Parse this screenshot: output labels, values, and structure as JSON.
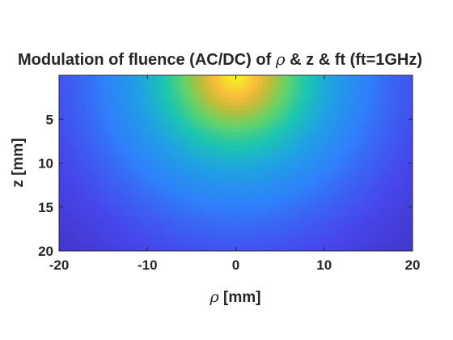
{
  "chart_data": {
    "type": "heatmap",
    "title_prefix": "Modulation of fluence (AC/DC) of ",
    "title_symbol": "ρ",
    "title_suffix": " & z & ft (ft=1GHz)",
    "xlabel_symbol": "ρ",
    "xlabel_unit": " [mm]",
    "ylabel": "z [mm]",
    "xlim": [
      -20,
      20
    ],
    "ylim": [
      0,
      20
    ],
    "y_reversed": true,
    "colormap": "parula",
    "grid": false,
    "x_ticks": [
      -20,
      -10,
      0,
      10,
      20
    ],
    "x_tick_labels": [
      "-20",
      "-10",
      "0",
      "10",
      "20"
    ],
    "y_ticks": [
      5,
      10,
      15,
      20
    ],
    "y_tick_labels": [
      "5",
      "10",
      "15",
      "20"
    ],
    "peak": {
      "rho": 0,
      "z": 0
    },
    "value_range": [
      0,
      1
    ]
  },
  "colors": {
    "axis": "#262626",
    "colormap_stops": [
      "#3e26a8",
      "#4746eb",
      "#2f80fb",
      "#1fa2e3",
      "#1cc6b0",
      "#62d36a",
      "#bcbd3a",
      "#f9bb3b",
      "#f8dc2e",
      "#f9fb15"
    ]
  }
}
